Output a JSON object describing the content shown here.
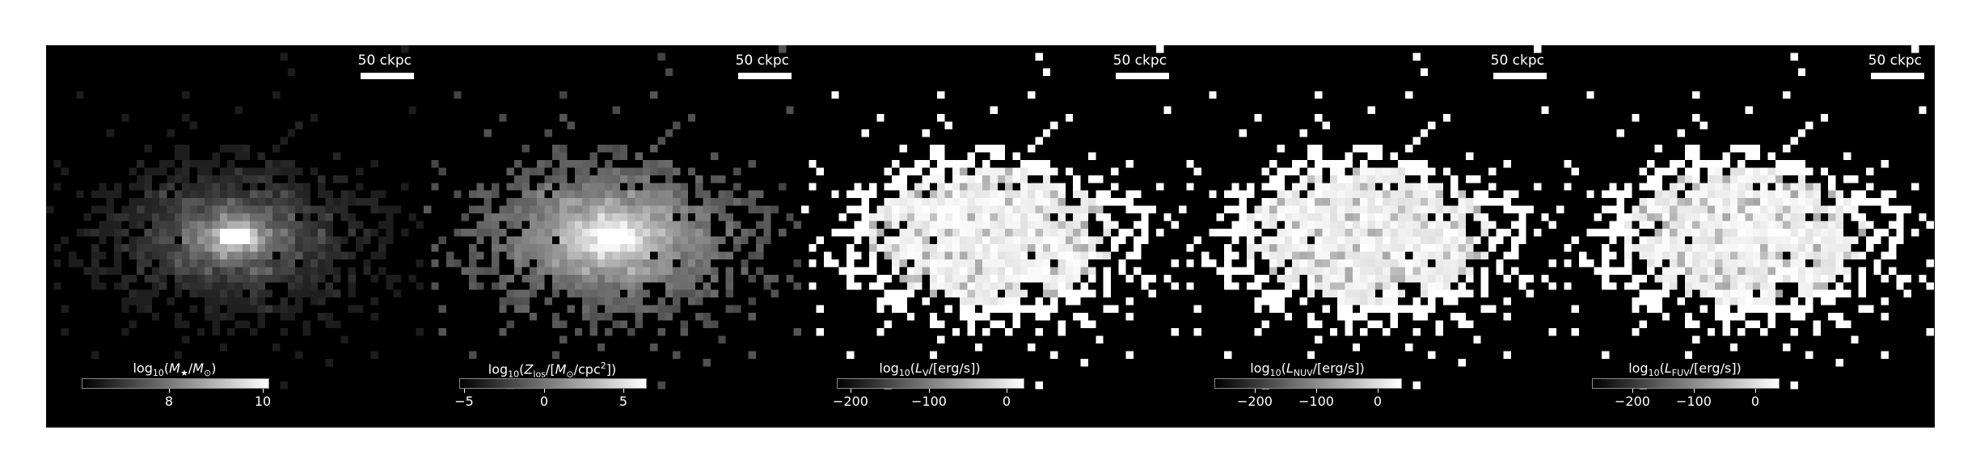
{
  "panels": [
    {
      "scalebar": "50 ckpc",
      "colorbar_label_html": "log<sub style='font-size:11px'>10</sub>(<i>M</i><sub style='font-size:11px'>★</sub>/<i>M</i><sub style='font-size:11px'>⊙</sub>)",
      "ticks": [
        "8",
        "10"
      ],
      "map_style": "stellar"
    },
    {
      "scalebar": "50 ckpc",
      "colorbar_label_html": "log<sub style='font-size:11px'>10</sub>(<i>Z</i><sub style='font-size:11px'>los</sub>/[<i>M</i><sub style='font-size:11px'>⊙</sub>/cpc<sup style='font-size:11px'>2</sup>])",
      "ticks": [
        "−5",
        "0",
        "5"
      ],
      "map_style": "metal"
    },
    {
      "scalebar": "50 ckpc",
      "colorbar_label_html": "log<sub style='font-size:11px'>10</sub>(<i>L</i><sub style='font-size:11px'>V</sub>/[erg/s])",
      "ticks": [
        "−200",
        "−100",
        "0"
      ],
      "map_style": "lum"
    },
    {
      "scalebar": "50 ckpc",
      "colorbar_label_html": "log<sub style='font-size:11px'>10</sub>(<i>L</i><sub style='font-size:11px'>NUV</sub>/[erg/s])",
      "ticks": [
        "−200",
        "−100",
        "0"
      ],
      "map_style": "lum"
    },
    {
      "scalebar": "50 ckpc",
      "colorbar_label_html": "log<sub style='font-size:11px'>10</sub>(<i>L</i><sub style='font-size:11px'>FUV</sub>/[erg/s])",
      "ticks": [
        "−200",
        "−100",
        "0"
      ],
      "map_style": "lum"
    }
  ]
}
